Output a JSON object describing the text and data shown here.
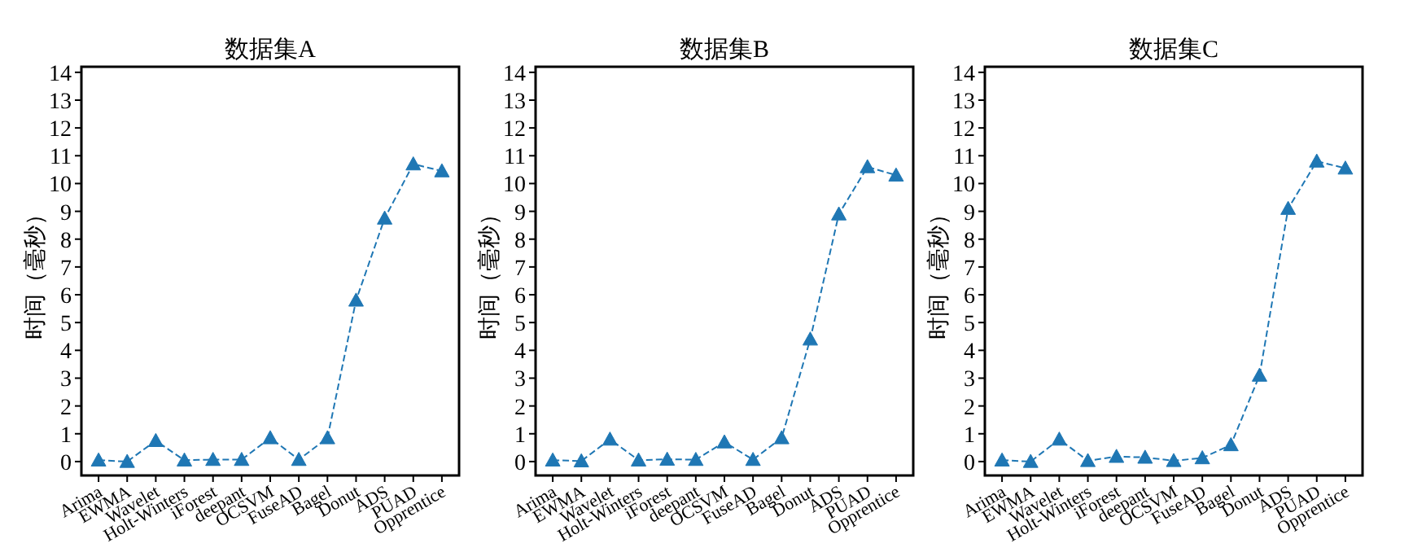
{
  "chart_data": [
    {
      "type": "line",
      "title": "数据集A",
      "ylabel": "时间（毫秒）",
      "categories": [
        "Arima",
        "EWMA",
        "Wavelet",
        "Holt-Winters",
        "iForest",
        "deepant",
        "OCSVM",
        "FuseAD",
        "Bagel",
        "Donut",
        "ADS",
        "PUAD",
        "Opprentice"
      ],
      "series": [
        {
          "color": "#1f77b4",
          "values": [
            0.05,
            0.0,
            0.75,
            0.05,
            0.07,
            0.07,
            0.85,
            0.07,
            0.85,
            5.8,
            8.75,
            10.7,
            10.45
          ]
        }
      ],
      "ylim": [
        -0.5,
        14.2
      ],
      "yticks": [
        0,
        1,
        2,
        3,
        4,
        5,
        6,
        7,
        8,
        9,
        10,
        11,
        12,
        13,
        14
      ],
      "marker": "triangle",
      "line_style": "dashed"
    },
    {
      "type": "line",
      "title": "数据集B",
      "ylabel": "时间（毫秒）",
      "categories": [
        "Arima",
        "EWMA",
        "Wavelet",
        "Holt-Winters",
        "iForest",
        "deepant",
        "OCSVM",
        "FuseAD",
        "Bagel",
        "Donut",
        "ADS",
        "PUAD",
        "Opprentice"
      ],
      "series": [
        {
          "color": "#1f77b4",
          "values": [
            0.05,
            0.02,
            0.8,
            0.05,
            0.08,
            0.07,
            0.7,
            0.07,
            0.85,
            4.4,
            8.9,
            10.6,
            10.3
          ]
        }
      ],
      "ylim": [
        -0.5,
        14.2
      ],
      "yticks": [
        0,
        1,
        2,
        3,
        4,
        5,
        6,
        7,
        8,
        9,
        10,
        11,
        12,
        13,
        14
      ],
      "marker": "triangle",
      "line_style": "dashed"
    },
    {
      "type": "line",
      "title": "数据集C",
      "ylabel": "时间（毫秒）",
      "categories": [
        "Arima",
        "EWMA",
        "Wavelet",
        "Holt-Winters",
        "iForest",
        "deepant",
        "OCSVM",
        "FuseAD",
        "Bagel",
        "Donut",
        "ADS",
        "PUAD",
        "Opprentice"
      ],
      "series": [
        {
          "color": "#1f77b4",
          "values": [
            0.05,
            0.0,
            0.8,
            0.03,
            0.18,
            0.15,
            0.03,
            0.13,
            0.6,
            3.1,
            9.1,
            10.8,
            10.55
          ]
        }
      ],
      "ylim": [
        -0.5,
        14.2
      ],
      "yticks": [
        0,
        1,
        2,
        3,
        4,
        5,
        6,
        7,
        8,
        9,
        10,
        11,
        12,
        13,
        14
      ],
      "marker": "triangle",
      "line_style": "dashed"
    }
  ]
}
